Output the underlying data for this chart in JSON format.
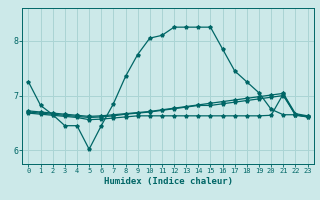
{
  "xlabel": "Humidex (Indice chaleur)",
  "bg_color": "#cce9e9",
  "line_color": "#006666",
  "grid_color": "#aad4d4",
  "xlim": [
    -0.5,
    23.5
  ],
  "ylim": [
    5.75,
    8.6
  ],
  "yticks": [
    6,
    7,
    8
  ],
  "xticks": [
    0,
    1,
    2,
    3,
    4,
    5,
    6,
    7,
    8,
    9,
    10,
    11,
    12,
    13,
    14,
    15,
    16,
    17,
    18,
    19,
    20,
    21,
    22,
    23
  ],
  "curve1_x": [
    0,
    1,
    2,
    3,
    4,
    5,
    6,
    7,
    8,
    9,
    10,
    11,
    12,
    13,
    14,
    15,
    16,
    17,
    18,
    19,
    20,
    21,
    22,
    23
  ],
  "curve1_y": [
    7.25,
    6.82,
    6.65,
    6.45,
    6.45,
    6.02,
    6.45,
    6.85,
    7.35,
    7.75,
    8.05,
    8.1,
    8.25,
    8.25,
    8.25,
    8.25,
    7.85,
    7.45,
    7.25,
    7.05,
    6.75,
    6.65,
    6.65,
    6.62
  ],
  "curve2_x": [
    0,
    1,
    2,
    3,
    4,
    5,
    6,
    7,
    8,
    9,
    10,
    11,
    12,
    13,
    14,
    15,
    16,
    17,
    18,
    19,
    20,
    21,
    22,
    23
  ],
  "curve2_y": [
    6.72,
    6.7,
    6.68,
    6.66,
    6.64,
    6.62,
    6.63,
    6.65,
    6.67,
    6.69,
    6.71,
    6.74,
    6.77,
    6.8,
    6.83,
    6.86,
    6.89,
    6.92,
    6.95,
    6.98,
    7.01,
    7.04,
    6.67,
    6.63
  ],
  "curve3_x": [
    0,
    1,
    2,
    3,
    4,
    5,
    6,
    7,
    8,
    9,
    10,
    11,
    12,
    13,
    14,
    15,
    16,
    17,
    18,
    19,
    20,
    21,
    22,
    23
  ],
  "curve3_y": [
    6.7,
    6.68,
    6.66,
    6.64,
    6.62,
    6.6,
    6.61,
    6.63,
    6.66,
    6.68,
    6.7,
    6.73,
    6.76,
    6.79,
    6.82,
    6.82,
    6.85,
    6.88,
    6.91,
    6.94,
    6.97,
    7.0,
    6.65,
    6.61
  ],
  "curve4_x": [
    0,
    1,
    2,
    3,
    4,
    5,
    6,
    7,
    8,
    9,
    10,
    11,
    12,
    13,
    14,
    15,
    16,
    17,
    18,
    19,
    20,
    21,
    22,
    23
  ],
  "curve4_y": [
    6.68,
    6.66,
    6.64,
    6.62,
    6.6,
    6.56,
    6.57,
    6.59,
    6.61,
    6.63,
    6.63,
    6.63,
    6.63,
    6.63,
    6.63,
    6.63,
    6.63,
    6.63,
    6.63,
    6.63,
    6.64,
    7.03,
    6.64,
    6.61
  ]
}
